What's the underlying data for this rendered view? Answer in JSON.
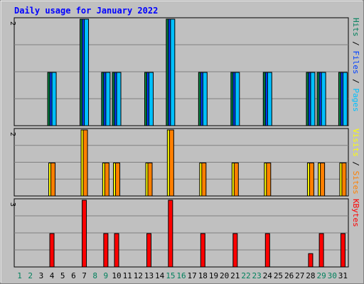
{
  "chart_data": {
    "type": "bar",
    "title": "Daily usage for January 2022",
    "days": [
      "1",
      "2",
      "3",
      "4",
      "5",
      "6",
      "7",
      "8",
      "9",
      "10",
      "11",
      "12",
      "13",
      "14",
      "15",
      "16",
      "17",
      "18",
      "19",
      "20",
      "21",
      "22",
      "23",
      "24",
      "25",
      "26",
      "27",
      "28",
      "29",
      "30",
      "31"
    ],
    "weekend_days": [
      1,
      2,
      8,
      9,
      15,
      16,
      22,
      23,
      29,
      30
    ],
    "panels": [
      {
        "name": "hits-files-pages",
        "ymax": 2,
        "ymax_label": "2",
        "legend": [
          {
            "label": "Pages",
            "color": "#00c0ff"
          },
          {
            "label": "Files",
            "color": "#0040ff"
          },
          {
            "label": "Hits",
            "color": "#00805c"
          }
        ],
        "legend_separator": " / ",
        "series": [
          {
            "name": "Hits",
            "color": "#008040",
            "values": [
              0,
              0,
              0,
              1,
              0,
              0,
              2,
              0,
              1,
              1,
              0,
              0,
              1,
              0,
              2,
              0,
              0,
              1,
              0,
              0,
              1,
              0,
              0,
              1,
              0,
              0,
              0,
              1,
              1,
              0,
              1
            ]
          },
          {
            "name": "Files",
            "color": "#0040ff",
            "values": [
              0,
              0,
              0,
              1,
              0,
              0,
              2,
              0,
              1,
              1,
              0,
              0,
              1,
              0,
              2,
              0,
              0,
              1,
              0,
              0,
              1,
              0,
              0,
              1,
              0,
              0,
              0,
              1,
              1,
              0,
              1
            ]
          },
          {
            "name": "Pages",
            "color": "#00c0ff",
            "values": [
              0,
              0,
              0,
              1,
              0,
              0,
              2,
              0,
              1,
              1,
              0,
              0,
              1,
              0,
              2,
              0,
              0,
              1,
              0,
              0,
              1,
              0,
              0,
              1,
              0,
              0,
              0,
              1,
              1,
              0,
              1
            ]
          }
        ]
      },
      {
        "name": "visits-sites",
        "ymax": 2,
        "ymax_label": "2",
        "legend": [
          {
            "label": "Sites",
            "color": "#ff8000"
          },
          {
            "label": "Visits",
            "color": "#ffff00"
          }
        ],
        "legend_separator": " / ",
        "series": [
          {
            "name": "Visits",
            "color": "#ffff00",
            "values": [
              0,
              0,
              0,
              1,
              0,
              0,
              2,
              0,
              1,
              1,
              0,
              0,
              1,
              0,
              2,
              0,
              0,
              1,
              0,
              0,
              1,
              0,
              0,
              1,
              0,
              0,
              0,
              1,
              1,
              0,
              1
            ]
          },
          {
            "name": "Sites",
            "color": "#ff8000",
            "values": [
              0,
              0,
              0,
              1,
              0,
              0,
              2,
              0,
              1,
              1,
              0,
              0,
              1,
              0,
              2,
              0,
              0,
              1,
              0,
              0,
              1,
              0,
              0,
              1,
              0,
              0,
              0,
              1,
              1,
              0,
              1
            ]
          }
        ]
      },
      {
        "name": "kbytes",
        "ymax": 3,
        "ymax_label": "3",
        "legend": [
          {
            "label": "KBytes",
            "color": "#ff0000"
          }
        ],
        "legend_separator": "",
        "series": [
          {
            "name": "KBytes",
            "color": "#ff0000",
            "values": [
              0,
              0,
              0,
              1.5,
              0,
              0,
              3,
              0,
              1.5,
              1.5,
              0,
              0,
              1.5,
              0,
              3,
              0,
              0,
              1.5,
              0,
              0,
              1.5,
              0,
              0,
              1.5,
              0,
              0,
              0,
              0.6,
              1.5,
              0,
              1.5
            ]
          }
        ]
      }
    ],
    "grid": true,
    "colors": {
      "background": "#c0c0c0",
      "plot_background": "#c0c0c0",
      "title": "#0000ff",
      "weekday_label": "#000000",
      "weekend_label": "#00805c"
    }
  }
}
